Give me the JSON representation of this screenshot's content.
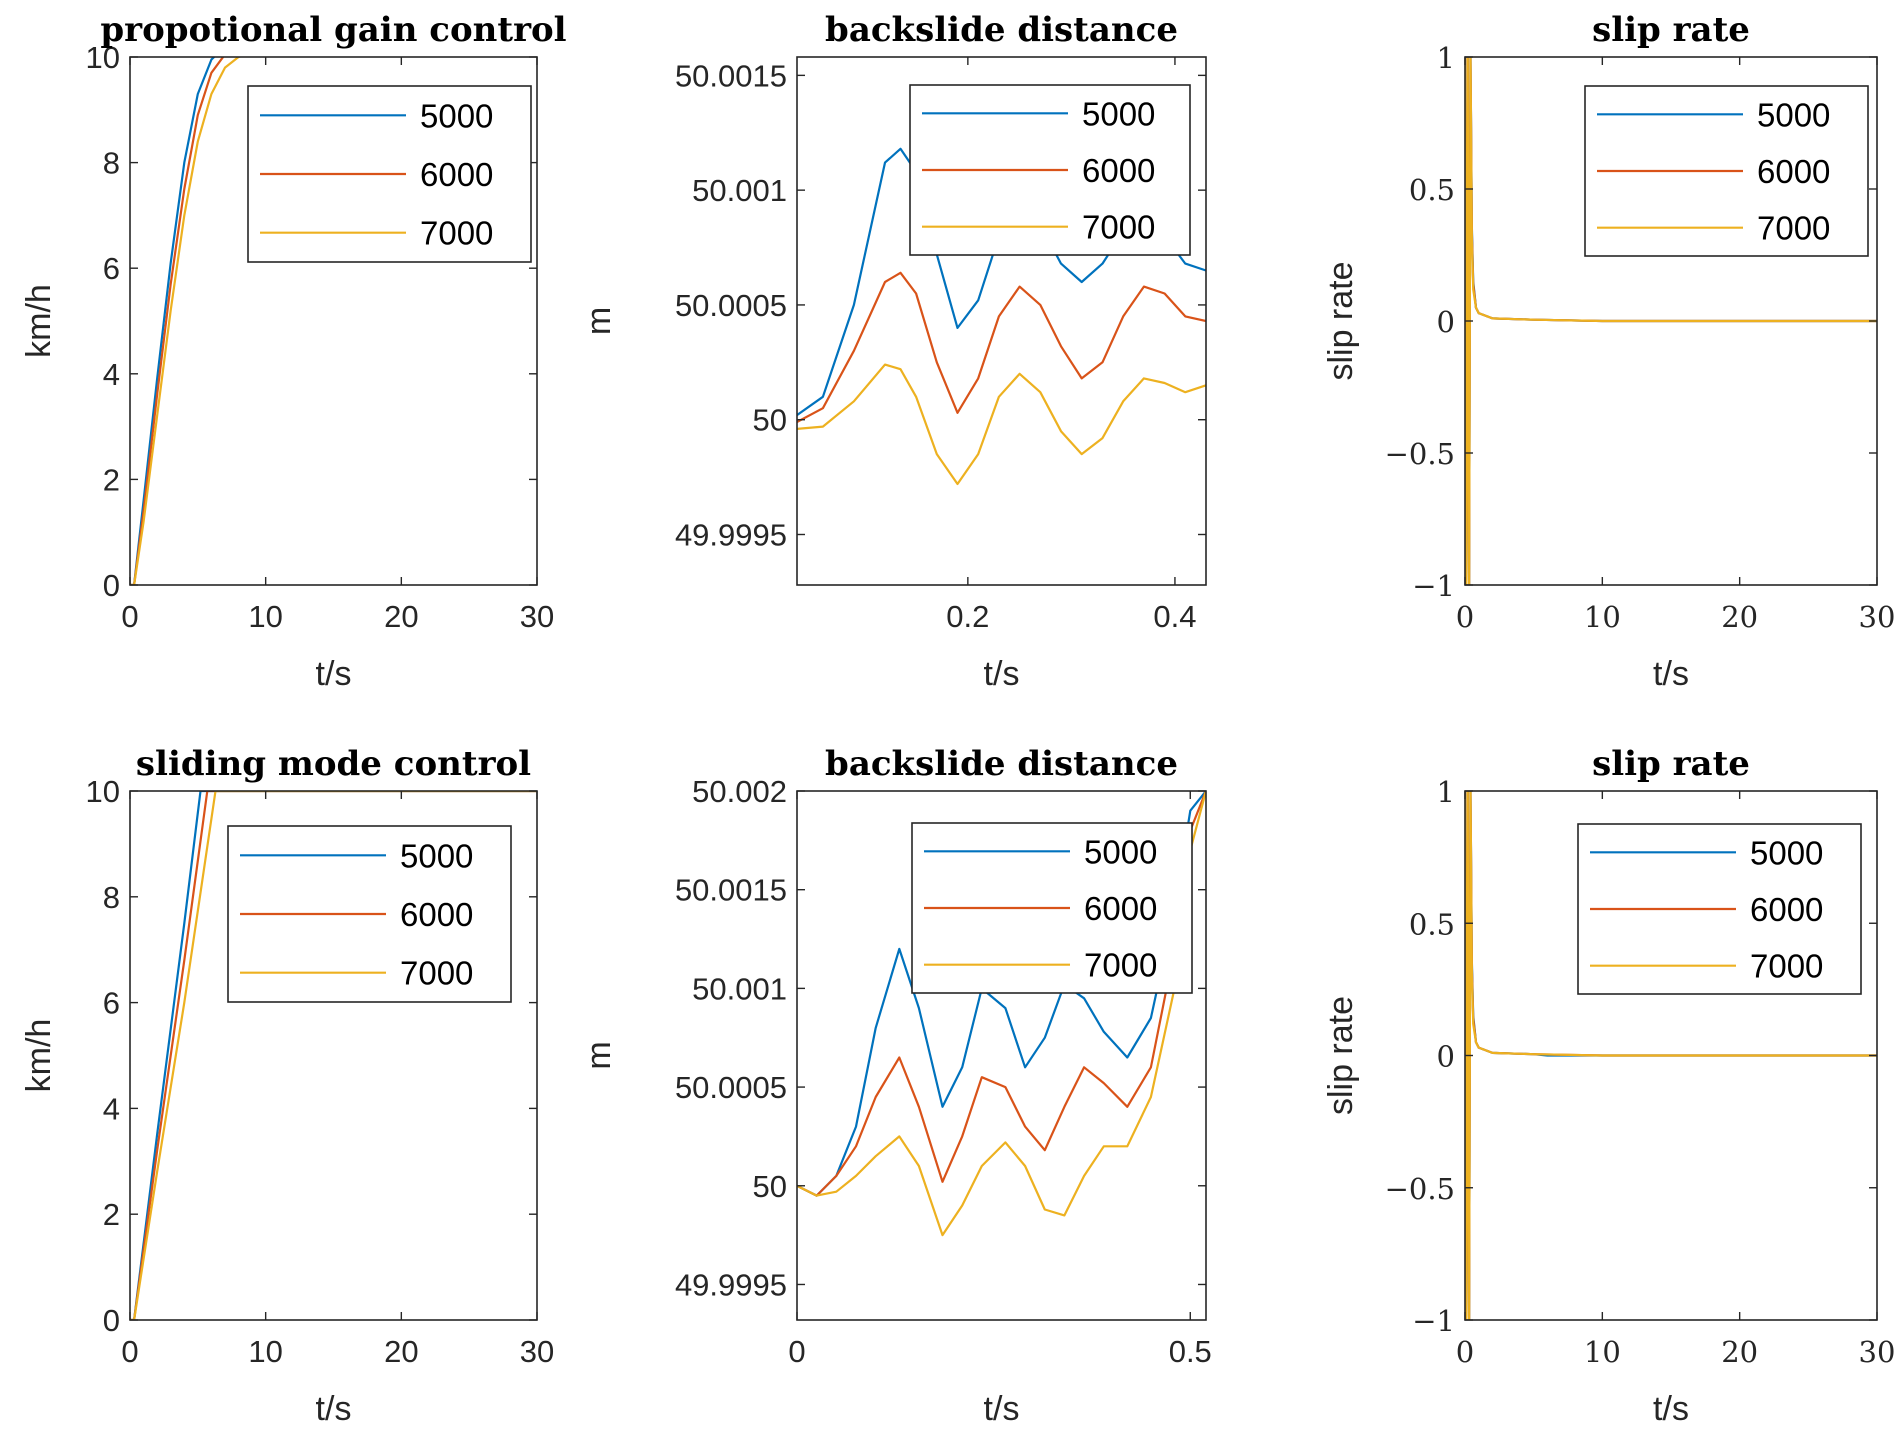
{
  "chart_data": [
    {
      "type": "line",
      "title": "propotional gain control",
      "xlabel": "t/s",
      "ylabel": "km/h",
      "xlim": [
        0,
        30
      ],
      "ylim": [
        0,
        10
      ],
      "xticks": [
        0,
        10,
        20,
        30
      ],
      "yticks": [
        0,
        2,
        4,
        6,
        8,
        10
      ],
      "xtick_labels": [
        "0",
        "10",
        "20",
        "30"
      ],
      "ytick_labels": [
        "0",
        "2",
        "4",
        "6",
        "8",
        "10"
      ],
      "legend": "top-right",
      "series": [
        {
          "name": "5000",
          "color": "#0072BD",
          "x": [
            0,
            0.3,
            1,
            2,
            3,
            4,
            5,
            6,
            7,
            8,
            9,
            10,
            12,
            15,
            20,
            25,
            30
          ],
          "y": [
            0,
            0,
            1.6,
            3.9,
            6.1,
            8.0,
            9.3,
            9.95,
            10.2,
            10.3,
            10.33,
            10.35,
            10.35,
            10.35,
            10.35,
            10.35,
            10.35
          ]
        },
        {
          "name": "6000",
          "color": "#D95319",
          "x": [
            0,
            0.3,
            1,
            2,
            3,
            4,
            5,
            6,
            7,
            8,
            9,
            10,
            12,
            15,
            20,
            25,
            30
          ],
          "y": [
            0,
            0,
            1.4,
            3.6,
            5.7,
            7.5,
            8.9,
            9.7,
            10.05,
            10.17,
            10.21,
            10.22,
            10.22,
            10.22,
            10.22,
            10.22,
            10.22
          ]
        },
        {
          "name": "7000",
          "color": "#EDB120",
          "x": [
            0,
            0.3,
            1,
            2,
            3,
            4,
            5,
            6,
            7,
            8,
            9,
            10,
            12,
            15,
            20,
            25,
            30
          ],
          "y": [
            0,
            0,
            1.2,
            3.2,
            5.2,
            7.0,
            8.4,
            9.3,
            9.8,
            10.0,
            10.07,
            10.1,
            10.12,
            10.12,
            10.12,
            10.12,
            10.12
          ]
        }
      ]
    },
    {
      "type": "line",
      "title": "backslide distance",
      "xlabel": "t/s",
      "ylabel": "m",
      "xlim": [
        0.035,
        0.43
      ],
      "ylim": [
        49.99928,
        50.00158
      ],
      "xticks": [
        0.2,
        0.4
      ],
      "yticks": [
        49.9995,
        50,
        50.0005,
        50.001,
        50.0015
      ],
      "xtick_labels": [
        "0.2",
        "0.4"
      ],
      "ytick_labels": [
        "49.9995",
        "50",
        "50.0005",
        "50.001",
        "50.0015"
      ],
      "legend": "top-right",
      "series": [
        {
          "name": "5000",
          "color": "#0072BD",
          "x": [
            0.035,
            0.06,
            0.09,
            0.12,
            0.135,
            0.15,
            0.17,
            0.19,
            0.21,
            0.23,
            0.25,
            0.27,
            0.29,
            0.31,
            0.33,
            0.35,
            0.37,
            0.39,
            0.41,
            0.43
          ],
          "y": [
            50.00002,
            50.0001,
            50.0005,
            50.00112,
            50.00118,
            50.00108,
            50.00072,
            50.0004,
            50.00052,
            50.0008,
            50.00095,
            50.00085,
            50.00068,
            50.0006,
            50.00068,
            50.00082,
            50.00088,
            50.0008,
            50.00068,
            50.00065
          ]
        },
        {
          "name": "6000",
          "color": "#D95319",
          "x": [
            0.035,
            0.06,
            0.09,
            0.12,
            0.135,
            0.15,
            0.17,
            0.19,
            0.21,
            0.23,
            0.25,
            0.27,
            0.29,
            0.31,
            0.33,
            0.35,
            0.37,
            0.39,
            0.41,
            0.43
          ],
          "y": [
            49.99999,
            50.00005,
            50.0003,
            50.0006,
            50.00064,
            50.00055,
            50.00025,
            50.00003,
            50.00018,
            50.00045,
            50.00058,
            50.0005,
            50.00032,
            50.00018,
            50.00025,
            50.00045,
            50.00058,
            50.00055,
            50.00045,
            50.00043
          ]
        },
        {
          "name": "7000",
          "color": "#EDB120",
          "x": [
            0.035,
            0.06,
            0.09,
            0.12,
            0.135,
            0.15,
            0.17,
            0.19,
            0.21,
            0.23,
            0.25,
            0.27,
            0.29,
            0.31,
            0.33,
            0.35,
            0.37,
            0.39,
            0.41,
            0.43
          ],
          "y": [
            49.99996,
            49.99997,
            50.00008,
            50.00024,
            50.00022,
            50.0001,
            49.99985,
            49.99972,
            49.99985,
            50.0001,
            50.0002,
            50.00012,
            49.99995,
            49.99985,
            49.99992,
            50.00008,
            50.00018,
            50.00016,
            50.00012,
            50.00015
          ]
        }
      ]
    },
    {
      "type": "line",
      "title": "slip rate",
      "xlabel": "t/s",
      "ylabel": "slip rate",
      "xlim": [
        0,
        30
      ],
      "ylim": [
        -1,
        1
      ],
      "xticks": [
        0,
        10,
        20,
        30
      ],
      "yticks": [
        -1,
        -0.5,
        0,
        0.5,
        1
      ],
      "xtick_labels": [
        "0",
        "10",
        "20",
        "30"
      ],
      "ytick_labels": [
        "−1",
        "−0.5",
        "0",
        "0.5",
        "1"
      ],
      "legend": "top-right",
      "series": [
        {
          "name": "5000",
          "color": "#0072BD",
          "x": [
            0,
            0.1,
            0.2,
            0.3,
            0.4,
            0.5,
            0.6,
            0.8,
            1,
            2,
            5,
            10,
            30
          ],
          "y": [
            1,
            -1,
            1,
            -1,
            1,
            0.35,
            0.15,
            0.05,
            0.03,
            0.01,
            0.005,
            0,
            0
          ]
        },
        {
          "name": "6000",
          "color": "#D95319",
          "x": [
            0,
            0.1,
            0.2,
            0.3,
            0.4,
            0.5,
            0.6,
            0.8,
            1,
            2,
            5,
            10,
            30
          ],
          "y": [
            1,
            -1,
            1,
            -1,
            1,
            0.33,
            0.14,
            0.05,
            0.03,
            0.01,
            0.005,
            0,
            0
          ]
        },
        {
          "name": "7000",
          "color": "#EDB120",
          "x": [
            0,
            0.1,
            0.2,
            0.3,
            0.4,
            0.5,
            0.6,
            0.8,
            1,
            2,
            5,
            10,
            30
          ],
          "y": [
            1,
            -1,
            1,
            -1,
            1,
            0.3,
            0.12,
            0.05,
            0.03,
            0.01,
            0.005,
            0,
            0
          ]
        }
      ]
    },
    {
      "type": "line",
      "title": "sliding mode control",
      "xlabel": "t/s",
      "ylabel": "km/h",
      "xlim": [
        0,
        30
      ],
      "ylim": [
        0,
        10
      ],
      "xticks": [
        0,
        10,
        20,
        30
      ],
      "yticks": [
        0,
        2,
        4,
        6,
        8,
        10
      ],
      "xtick_labels": [
        "0",
        "10",
        "20",
        "30"
      ],
      "ytick_labels": [
        "0",
        "2",
        "4",
        "6",
        "8",
        "10"
      ],
      "legend": "top-right",
      "series": [
        {
          "name": "5000",
          "color": "#0072BD",
          "x": [
            0,
            0.3,
            2,
            4,
            5.2,
            10,
            20,
            30
          ],
          "y": [
            0,
            0,
            3.5,
            7.5,
            10,
            10,
            10,
            10
          ]
        },
        {
          "name": "6000",
          "color": "#D95319",
          "x": [
            0,
            0.3,
            2,
            4,
            5.7,
            10,
            20,
            30
          ],
          "y": [
            0,
            0,
            3.2,
            6.8,
            10,
            10,
            10,
            10
          ]
        },
        {
          "name": "7000",
          "color": "#EDB120",
          "x": [
            0,
            0.3,
            2,
            4,
            6.3,
            10,
            20,
            30
          ],
          "y": [
            0,
            0,
            2.8,
            6.0,
            10,
            10,
            10,
            10
          ]
        }
      ]
    },
    {
      "type": "line",
      "title": "backslide distance",
      "xlabel": "t/s",
      "ylabel": "m",
      "xlim": [
        0,
        0.52
      ],
      "ylim": [
        49.99932,
        50.002
      ],
      "xticks": [
        0,
        0.5
      ],
      "yticks": [
        49.9995,
        50,
        50.0005,
        50.001,
        50.0015,
        50.002
      ],
      "xtick_labels": [
        "0",
        "0.5"
      ],
      "ytick_labels": [
        "49.9995",
        "50",
        "50.0005",
        "50.001",
        "50.0015",
        "50.002"
      ],
      "legend": "top-right",
      "series": [
        {
          "name": "5000",
          "color": "#0072BD",
          "x": [
            0,
            0.025,
            0.05,
            0.075,
            0.1,
            0.13,
            0.155,
            0.185,
            0.21,
            0.235,
            0.265,
            0.29,
            0.315,
            0.34,
            0.365,
            0.39,
            0.42,
            0.45,
            0.48,
            0.5,
            0.52
          ],
          "y": [
            50,
            49.99995,
            50.00005,
            50.0003,
            50.0008,
            50.0012,
            50.0009,
            50.0004,
            50.0006,
            50.001,
            50.0009,
            50.0006,
            50.00075,
            50.00102,
            50.00095,
            50.00078,
            50.00065,
            50.00085,
            50.0014,
            50.0019,
            50.002
          ]
        },
        {
          "name": "6000",
          "color": "#D95319",
          "x": [
            0,
            0.025,
            0.05,
            0.075,
            0.1,
            0.13,
            0.155,
            0.185,
            0.21,
            0.235,
            0.265,
            0.29,
            0.315,
            0.34,
            0.365,
            0.39,
            0.42,
            0.45,
            0.48,
            0.5,
            0.52
          ],
          "y": [
            50,
            49.99995,
            50.00005,
            50.0002,
            50.00045,
            50.00065,
            50.0004,
            50.00002,
            50.00025,
            50.00055,
            50.0005,
            50.0003,
            50.00018,
            50.0004,
            50.0006,
            50.00052,
            50.0004,
            50.0006,
            50.0012,
            50.0018,
            50.002
          ]
        },
        {
          "name": "7000",
          "color": "#EDB120",
          "x": [
            0,
            0.025,
            0.05,
            0.075,
            0.1,
            0.13,
            0.155,
            0.185,
            0.21,
            0.235,
            0.265,
            0.29,
            0.315,
            0.34,
            0.365,
            0.39,
            0.42,
            0.45,
            0.48,
            0.5,
            0.52
          ],
          "y": [
            50,
            49.99995,
            49.99997,
            50.00005,
            50.00015,
            50.00025,
            50.0001,
            49.99975,
            49.9999,
            50.0001,
            50.00022,
            50.0001,
            49.99988,
            49.99985,
            50.00005,
            50.0002,
            50.0002,
            50.00045,
            50.001,
            50.0017,
            50.002
          ]
        }
      ]
    },
    {
      "type": "line",
      "title": "slip rate",
      "xlabel": "t/s",
      "ylabel": "slip rate",
      "xlim": [
        0,
        30
      ],
      "ylim": [
        -1,
        1
      ],
      "xticks": [
        0,
        10,
        20,
        30
      ],
      "yticks": [
        -1,
        -0.5,
        0,
        0.5,
        1
      ],
      "xtick_labels": [
        "0",
        "10",
        "20",
        "30"
      ],
      "ytick_labels": [
        "−1",
        "−0.5",
        "0",
        "0.5",
        "1"
      ],
      "legend": "top-right",
      "series": [
        {
          "name": "5000",
          "color": "#0072BD",
          "x": [
            0,
            0.1,
            0.2,
            0.3,
            0.4,
            0.5,
            0.6,
            0.8,
            1,
            2,
            5,
            6,
            10,
            30
          ],
          "y": [
            1,
            -1,
            1,
            -1,
            1,
            0.35,
            0.15,
            0.05,
            0.03,
            0.01,
            0.005,
            0,
            0,
            0
          ]
        },
        {
          "name": "6000",
          "color": "#D95319",
          "x": [
            0,
            0.1,
            0.2,
            0.3,
            0.4,
            0.5,
            0.6,
            0.8,
            1,
            2,
            5,
            10,
            30
          ],
          "y": [
            1,
            -1,
            1,
            -1,
            1,
            0.33,
            0.14,
            0.05,
            0.03,
            0.01,
            0.005,
            0,
            0
          ]
        },
        {
          "name": "7000",
          "color": "#EDB120",
          "x": [
            0,
            0.1,
            0.2,
            0.3,
            0.4,
            0.5,
            0.6,
            0.8,
            1,
            2,
            5,
            10,
            30
          ],
          "y": [
            1,
            -1,
            1,
            -1,
            1,
            0.3,
            0.12,
            0.05,
            0.03,
            0.01,
            0.005,
            0,
            0
          ]
        }
      ]
    }
  ]
}
